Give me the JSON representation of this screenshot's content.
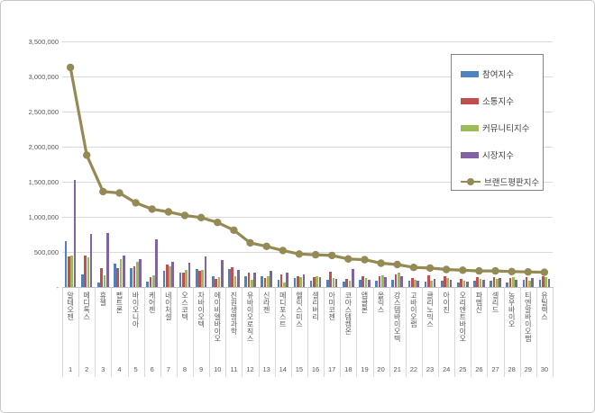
{
  "frame": {
    "title": ""
  },
  "chart_data": {
    "type": "bar",
    "title": "",
    "xlabel": "",
    "ylabel": "",
    "grid": true,
    "categories": [
      "알테오젠",
      "메디톡스",
      "휴젤",
      "펩트론",
      "바이오니아",
      "케어젠",
      "네이처셀",
      "오스코텍",
      "차바이오텍",
      "에이비엘바이오",
      "진원생명과학",
      "유바이오로직스",
      "신라젠",
      "메디포스트",
      "헬릭스미스",
      "셀리버리",
      "아미코젠",
      "코아스템켐온",
      "앱클론",
      "올릭스",
      "강스템바이오텍",
      "고바이오랩",
      "클리노믹스",
      "아이진",
      "오리엔트바이오",
      "파멥신",
      "셀리드",
      "농우바이오",
      "티엔알바이오팹",
      "유틸렉스"
    ],
    "category_numbers": [
      "1",
      "2",
      "3",
      "4",
      "5",
      "6",
      "7",
      "8",
      "9",
      "10",
      "11",
      "12",
      "13",
      "14",
      "15",
      "16",
      "17",
      "18",
      "19",
      "20",
      "21",
      "22",
      "23",
      "24",
      "25",
      "26",
      "27",
      "28",
      "29",
      "30"
    ],
    "series": [
      {
        "name": "참여지수",
        "type": "bar",
        "color": "#4F81BD",
        "values": [
          660000,
          185000,
          70000,
          335000,
          270000,
          75000,
          230000,
          205000,
          255000,
          160000,
          255000,
          160000,
          160000,
          100000,
          130000,
          95000,
          100000,
          75000,
          105000,
          95000,
          105000,
          90000,
          80000,
          95000,
          60000,
          90000,
          85000,
          60000,
          100000,
          105000
        ]
      },
      {
        "name": "소통지수",
        "type": "bar",
        "color": "#C0504D",
        "values": [
          430000,
          455000,
          265000,
          270000,
          300000,
          140000,
          315000,
          205000,
          225000,
          120000,
          285000,
          205000,
          130000,
          175000,
          160000,
          140000,
          220000,
          110000,
          150000,
          150000,
          175000,
          130000,
          165000,
          160000,
          120000,
          140000,
          145000,
          130000,
          145000,
          155000
        ]
      },
      {
        "name": "커뮤니티지수",
        "type": "bar",
        "color": "#9BBB59",
        "values": [
          450000,
          420000,
          165000,
          400000,
          355000,
          170000,
          300000,
          240000,
          250000,
          140000,
          160000,
          100000,
          155000,
          65000,
          140000,
          150000,
          130000,
          90000,
          130000,
          165000,
          200000,
          105000,
          90000,
          130000,
          95000,
          120000,
          120000,
          145000,
          90000,
          140000
        ]
      },
      {
        "name": "시장지수",
        "type": "bar",
        "color": "#8064A2",
        "values": [
          1520000,
          760000,
          770000,
          445000,
          400000,
          680000,
          360000,
          350000,
          430000,
          390000,
          240000,
          200000,
          225000,
          210000,
          180000,
          140000,
          110000,
          260000,
          105000,
          145000,
          150000,
          95000,
          120000,
          100000,
          75000,
          105000,
          130000,
          105000,
          130000,
          120000
        ]
      },
      {
        "name": "브랜드평판지수",
        "type": "line",
        "color": "#948A54",
        "values": [
          3130000,
          1880000,
          1360000,
          1340000,
          1200000,
          1110000,
          1070000,
          1020000,
          990000,
          920000,
          810000,
          630000,
          580000,
          520000,
          470000,
          460000,
          450000,
          400000,
          390000,
          340000,
          320000,
          280000,
          270000,
          250000,
          240000,
          230000,
          230000,
          220000,
          215000,
          210000
        ]
      }
    ],
    "y_axis": {
      "min": 0,
      "max": 3500000,
      "tick_interval": 500000,
      "tick_labels": [
        "3,500,000",
        "3,000,000",
        "2,500,000",
        "2,000,000",
        "1,500,000",
        "1,000,000",
        "500,000",
        "-"
      ],
      "tick_values": [
        3500000,
        3000000,
        2500000,
        2000000,
        1500000,
        1000000,
        500000,
        0
      ]
    },
    "legend": {
      "position": "upper-right",
      "items": [
        "참여지수",
        "소통지수",
        "커뮤니티지수",
        "시장지수",
        "브랜드평판지수"
      ]
    }
  }
}
